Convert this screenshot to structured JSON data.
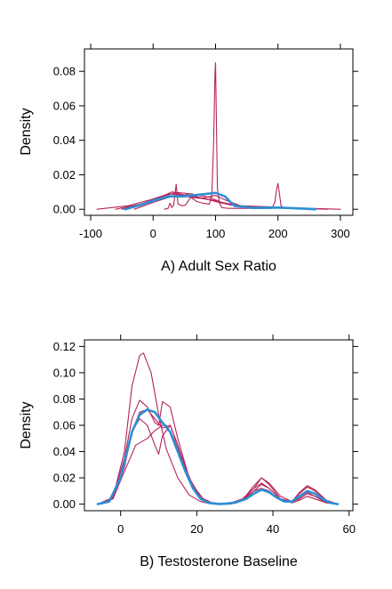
{
  "colors": {
    "mean": "#2c8fd6",
    "replicate": "#b5245a",
    "axis": "#000000"
  },
  "chart_data": [
    {
      "type": "line",
      "title": "",
      "xlabel": "A) Adult Sex Ratio",
      "ylabel": "Density",
      "xlim": [
        -110,
        320
      ],
      "ylim": [
        -0.0035,
        0.093
      ],
      "xticks": [
        -100,
        0,
        100,
        200,
        300
      ],
      "xtick_labels": [
        "-100",
        "0",
        "100",
        "200",
        "300"
      ],
      "yticks": [
        0,
        0.02,
        0.04,
        0.06,
        0.08
      ],
      "ytick_labels": [
        "0.00",
        "0.02",
        "0.04",
        "0.06",
        "0.08"
      ],
      "grid": false,
      "legend": "none",
      "series": [
        {
          "role": "mean",
          "x": [
            -45,
            -20,
            0,
            25,
            50,
            75,
            100,
            115,
            130,
            160,
            200,
            240,
            260
          ],
          "y": [
            0,
            0.0025,
            0.005,
            0.0075,
            0.0075,
            0.0085,
            0.0095,
            0.0075,
            0.002,
            0.0008,
            0.001,
            0.0004,
            0
          ]
        },
        {
          "role": "replicate",
          "x": [
            -90,
            -40,
            0,
            25,
            40,
            60,
            85,
            100,
            120,
            150,
            200,
            250,
            300
          ],
          "y": [
            0,
            0.002,
            0.006,
            0.009,
            0.0085,
            0.007,
            0.006,
            0.005,
            0.003,
            0.0015,
            0.0012,
            0.0005,
            0
          ]
        },
        {
          "role": "replicate",
          "x": [
            -60,
            -20,
            10,
            35,
            60,
            90,
            105,
            125,
            160,
            200,
            240,
            280
          ],
          "y": [
            0,
            0.003,
            0.007,
            0.0095,
            0.0075,
            0.0055,
            0.004,
            0.0025,
            0.0015,
            0.001,
            0.0005,
            0
          ]
        },
        {
          "role": "replicate",
          "x": [
            -30,
            0,
            30,
            55,
            80,
            100,
            115,
            140,
            170,
            210,
            250
          ],
          "y": [
            0,
            0.004,
            0.0075,
            0.0085,
            0.0065,
            0.008,
            0.0055,
            0.002,
            0.0012,
            0.0008,
            0
          ]
        },
        {
          "role": "replicate",
          "x": [
            -50,
            0,
            30,
            60,
            90,
            110,
            140,
            180,
            220,
            260
          ],
          "y": [
            0,
            0.005,
            0.01,
            0.009,
            0.007,
            0.004,
            0.002,
            0.0015,
            0.001,
            0
          ]
        },
        {
          "role": "replicate",
          "x": [
            18,
            24,
            27,
            30,
            33,
            37,
            40,
            46,
            52,
            60,
            70,
            80,
            90,
            94,
            97,
            99,
            100,
            101,
            103,
            106,
            110,
            120,
            150,
            190,
            195,
            198,
            200,
            202,
            205,
            210,
            230,
            260
          ],
          "y": [
            0,
            0.0005,
            0.0035,
            0.001,
            0.0025,
            0.0145,
            0.003,
            0.002,
            0.0025,
            0.007,
            0.0045,
            0.0035,
            0.003,
            0.008,
            0.04,
            0.078,
            0.085,
            0.06,
            0.012,
            0.004,
            0.001,
            0.0005,
            0.0005,
            0.0005,
            0.004,
            0.012,
            0.015,
            0.01,
            0.002,
            0.0005,
            0.0003,
            0
          ]
        }
      ]
    },
    {
      "type": "line",
      "title": "",
      "xlabel": "B) Testosterone Baseline",
      "ylabel": "Density",
      "xlim": [
        -9.5,
        61
      ],
      "ylim": [
        -0.005,
        0.125
      ],
      "xticks": [
        0,
        20,
        40,
        60
      ],
      "xtick_labels": [
        "0",
        "20",
        "40",
        "60"
      ],
      "yticks": [
        0,
        0.02,
        0.04,
        0.06,
        0.08,
        0.1,
        0.12
      ],
      "ytick_labels": [
        "0.00",
        "0.02",
        "0.04",
        "0.06",
        "0.08",
        "0.10",
        "0.12"
      ],
      "grid": false,
      "legend": "none",
      "series": [
        {
          "role": "mean",
          "x": [
            -6,
            -3,
            0,
            3,
            5,
            7,
            9,
            11,
            13,
            15,
            17,
            19,
            21,
            23,
            26,
            30,
            33,
            35,
            37,
            39,
            41,
            43,
            45,
            47,
            49,
            51,
            53,
            55,
            57
          ],
          "y": [
            0,
            0.002,
            0.02,
            0.055,
            0.068,
            0.072,
            0.07,
            0.062,
            0.055,
            0.04,
            0.025,
            0.012,
            0.004,
            0.001,
            0,
            0.001,
            0.004,
            0.008,
            0.011,
            0.009,
            0.005,
            0.002,
            0.002,
            0.006,
            0.01,
            0.008,
            0.004,
            0.001,
            0
          ]
        },
        {
          "role": "replicate",
          "x": [
            -6,
            -2,
            1,
            3,
            5,
            6,
            8,
            10,
            12,
            15,
            18,
            21,
            24,
            28,
            32,
            35,
            37,
            39,
            42,
            45,
            47,
            49,
            51,
            54,
            57
          ],
          "y": [
            0,
            0.005,
            0.04,
            0.09,
            0.113,
            0.115,
            0.1,
            0.068,
            0.042,
            0.02,
            0.007,
            0.002,
            0,
            0,
            0.003,
            0.012,
            0.02,
            0.016,
            0.006,
            0.002,
            0.004,
            0.008,
            0.006,
            0.002,
            0
          ]
        },
        {
          "role": "replicate",
          "x": [
            -6,
            -2,
            1,
            3,
            5,
            7,
            9,
            10,
            11,
            13,
            15,
            18,
            21,
            24,
            28,
            32,
            35,
            37,
            39,
            42,
            45,
            47,
            49,
            51,
            54,
            57
          ],
          "y": [
            0,
            0.005,
            0.035,
            0.065,
            0.079,
            0.074,
            0.062,
            0.06,
            0.078,
            0.074,
            0.05,
            0.02,
            0.005,
            0.001,
            0,
            0.004,
            0.012,
            0.016,
            0.012,
            0.004,
            0.002,
            0.008,
            0.013,
            0.01,
            0.003,
            0
          ]
        },
        {
          "role": "replicate",
          "x": [
            -6,
            -2,
            1,
            3,
            5,
            7,
            9,
            10,
            11,
            13,
            15,
            18,
            21,
            24,
            28,
            32,
            35,
            37,
            39,
            42,
            45,
            47,
            49,
            51,
            54,
            57
          ],
          "y": [
            0,
            0.005,
            0.03,
            0.055,
            0.065,
            0.06,
            0.045,
            0.038,
            0.052,
            0.06,
            0.045,
            0.018,
            0.004,
            0.001,
            0,
            0.003,
            0.014,
            0.02,
            0.015,
            0.004,
            0.001,
            0.005,
            0.009,
            0.006,
            0.001,
            0
          ]
        },
        {
          "role": "replicate",
          "x": [
            -6,
            -2,
            1,
            4,
            7,
            9,
            11,
            12,
            14,
            16,
            19,
            22,
            25,
            29,
            33,
            35,
            37,
            39,
            42,
            45,
            47,
            49,
            51,
            54,
            57
          ],
          "y": [
            0,
            0.004,
            0.025,
            0.045,
            0.05,
            0.056,
            0.06,
            0.06,
            0.05,
            0.035,
            0.014,
            0.003,
            0,
            0,
            0.005,
            0.01,
            0.012,
            0.01,
            0.003,
            0.002,
            0.009,
            0.014,
            0.011,
            0.003,
            0
          ]
        },
        {
          "role": "replicate",
          "x": [
            -6,
            -2,
            1,
            3,
            5,
            7,
            9,
            11,
            13,
            15,
            18,
            21,
            24,
            28,
            32,
            35,
            37,
            39,
            42,
            45,
            47,
            49,
            51,
            54,
            57
          ],
          "y": [
            0,
            0.004,
            0.028,
            0.055,
            0.07,
            0.072,
            0.065,
            0.058,
            0.06,
            0.045,
            0.02,
            0.005,
            0.001,
            0,
            0.003,
            0.01,
            0.015,
            0.012,
            0.004,
            0.001,
            0.003,
            0.006,
            0.004,
            0.001,
            0
          ]
        }
      ]
    }
  ]
}
